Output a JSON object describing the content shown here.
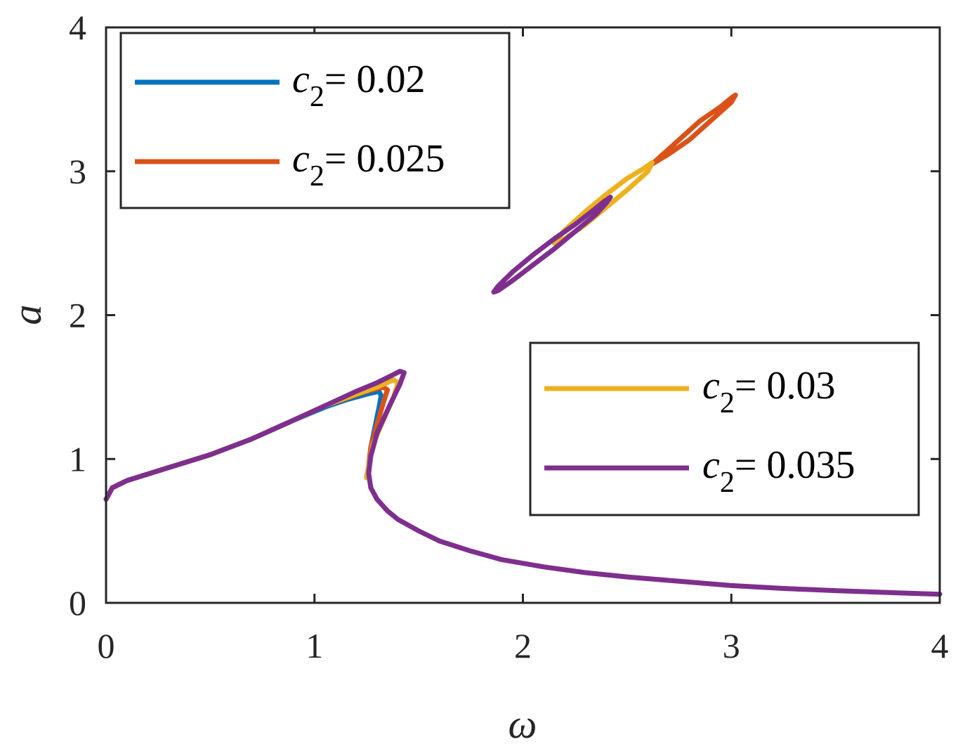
{
  "chart_data": {
    "type": "line",
    "xlabel": "ω",
    "ylabel": "a",
    "xlim": [
      0,
      4
    ],
    "ylim": [
      0,
      4
    ],
    "xticks": [
      "0",
      "1",
      "2",
      "3",
      "4"
    ],
    "yticks": [
      "0",
      "1",
      "2",
      "3",
      "4"
    ],
    "grid": false,
    "legends": [
      {
        "placement": "top-left",
        "series": [
          0,
          1
        ]
      },
      {
        "placement": "middle-right",
        "series": [
          2,
          3
        ]
      }
    ],
    "series": [
      {
        "name": "c2= 0.02",
        "name_var": "c",
        "name_sub": "2",
        "name_val": "= 0.02",
        "color": "#0072BD",
        "segments": [
          [
            [
              0,
              0.72
            ],
            [
              0.03,
              0.8
            ],
            [
              0.1,
              0.85
            ],
            [
              0.3,
              0.94
            ],
            [
              0.5,
              1.03
            ],
            [
              0.7,
              1.14
            ],
            [
              0.9,
              1.27
            ],
            [
              1.05,
              1.36
            ],
            [
              1.15,
              1.41
            ],
            [
              1.25,
              1.45
            ],
            [
              1.31,
              1.47
            ],
            [
              1.32,
              1.44
            ],
            [
              1.31,
              1.36
            ],
            [
              1.29,
              1.22
            ],
            [
              1.27,
              1.08
            ],
            [
              1.26,
              0.95
            ],
            [
              1.25,
              0.87
            ]
          ]
        ]
      },
      {
        "name": "c2= 0.025",
        "name_var": "c",
        "name_sub": "2",
        "name_val": "= 0.025",
        "color": "#D95319",
        "segments": [
          [
            [
              0,
              0.72
            ],
            [
              0.03,
              0.8
            ],
            [
              0.1,
              0.85
            ],
            [
              0.3,
              0.94
            ],
            [
              0.5,
              1.03
            ],
            [
              0.7,
              1.14
            ],
            [
              0.9,
              1.27
            ],
            [
              1.05,
              1.37
            ],
            [
              1.15,
              1.42
            ],
            [
              1.25,
              1.47
            ],
            [
              1.33,
              1.5
            ],
            [
              1.35,
              1.48
            ],
            [
              1.33,
              1.39
            ],
            [
              1.3,
              1.24
            ],
            [
              1.27,
              1.08
            ],
            [
              1.26,
              0.95
            ],
            [
              1.25,
              0.87
            ]
          ],
          [
            [
              2.62,
              3.05
            ],
            [
              2.75,
              3.22
            ],
            [
              2.85,
              3.35
            ],
            [
              2.95,
              3.45
            ],
            [
              3.0,
              3.51
            ],
            [
              3.02,
              3.53
            ],
            [
              3.0,
              3.48
            ],
            [
              2.9,
              3.35
            ],
            [
              2.8,
              3.22
            ],
            [
              2.7,
              3.12
            ],
            [
              2.62,
              3.05
            ]
          ]
        ]
      },
      {
        "name": "c2= 0.03",
        "name_var": "c",
        "name_sub": "2",
        "name_val": "= 0.03",
        "color": "#EDB120",
        "segments": [
          [
            [
              0,
              0.72
            ],
            [
              0.03,
              0.8
            ],
            [
              0.1,
              0.85
            ],
            [
              0.3,
              0.94
            ],
            [
              0.5,
              1.03
            ],
            [
              0.7,
              1.14
            ],
            [
              0.9,
              1.27
            ],
            [
              1.05,
              1.37
            ],
            [
              1.2,
              1.45
            ],
            [
              1.3,
              1.5
            ],
            [
              1.38,
              1.55
            ],
            [
              1.4,
              1.53
            ],
            [
              1.38,
              1.43
            ],
            [
              1.33,
              1.27
            ],
            [
              1.28,
              1.1
            ],
            [
              1.26,
              0.95
            ],
            [
              1.25,
              0.87
            ]
          ],
          [
            [
              2.15,
              2.5
            ],
            [
              2.2,
              2.59
            ],
            [
              2.3,
              2.72
            ],
            [
              2.4,
              2.84
            ],
            [
              2.5,
              2.95
            ],
            [
              2.58,
              3.02
            ],
            [
              2.62,
              3.06
            ],
            [
              2.6,
              3.0
            ],
            [
              2.5,
              2.87
            ],
            [
              2.4,
              2.75
            ],
            [
              2.3,
              2.63
            ],
            [
              2.2,
              2.53
            ],
            [
              2.15,
              2.5
            ]
          ]
        ]
      },
      {
        "name": "c2= 0.035",
        "name_var": "c",
        "name_sub": "2",
        "name_val": "= 0.035",
        "color": "#7E2F8E",
        "segments": [
          [
            [
              0,
              0.72
            ],
            [
              0.03,
              0.8
            ],
            [
              0.1,
              0.85
            ],
            [
              0.3,
              0.94
            ],
            [
              0.5,
              1.03
            ],
            [
              0.7,
              1.14
            ],
            [
              0.9,
              1.27
            ],
            [
              1.05,
              1.37
            ],
            [
              1.2,
              1.47
            ],
            [
              1.3,
              1.53
            ],
            [
              1.37,
              1.58
            ],
            [
              1.41,
              1.61
            ],
            [
              1.43,
              1.6
            ],
            [
              1.41,
              1.52
            ],
            [
              1.36,
              1.37
            ],
            [
              1.3,
              1.18
            ],
            [
              1.27,
              1.02
            ],
            [
              1.26,
              0.9
            ],
            [
              1.27,
              0.8
            ],
            [
              1.3,
              0.72
            ],
            [
              1.35,
              0.64
            ],
            [
              1.4,
              0.58
            ],
            [
              1.5,
              0.5
            ],
            [
              1.6,
              0.43
            ],
            [
              1.75,
              0.36
            ],
            [
              1.9,
              0.3
            ],
            [
              2.1,
              0.25
            ],
            [
              2.3,
              0.21
            ],
            [
              2.5,
              0.18
            ],
            [
              2.75,
              0.15
            ],
            [
              3.0,
              0.12
            ],
            [
              3.25,
              0.1
            ],
            [
              3.5,
              0.085
            ],
            [
              3.75,
              0.072
            ],
            [
              4.0,
              0.06
            ]
          ],
          [
            [
              1.86,
              2.16
            ],
            [
              1.88,
              2.2
            ],
            [
              1.95,
              2.3
            ],
            [
              2.05,
              2.42
            ],
            [
              2.15,
              2.53
            ],
            [
              2.25,
              2.63
            ],
            [
              2.33,
              2.72
            ],
            [
              2.39,
              2.79
            ],
            [
              2.42,
              2.82
            ],
            [
              2.4,
              2.78
            ],
            [
              2.35,
              2.7
            ],
            [
              2.25,
              2.58
            ],
            [
              2.15,
              2.46
            ],
            [
              2.05,
              2.35
            ],
            [
              1.95,
              2.24
            ],
            [
              1.88,
              2.17
            ],
            [
              1.86,
              2.16
            ]
          ]
        ]
      }
    ]
  }
}
